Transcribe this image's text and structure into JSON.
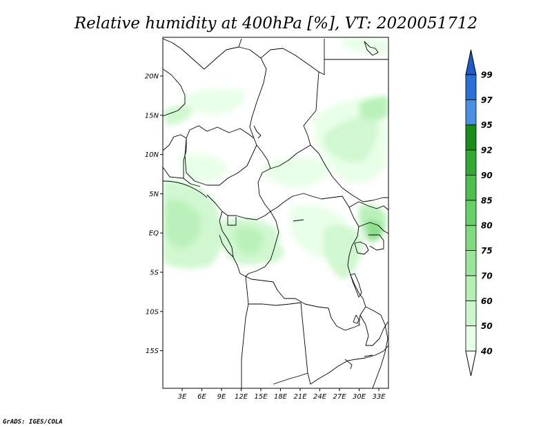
{
  "title": "Relative humidity at 400hPa [%], VT: 2020051712",
  "credit": "GrADS: IGES/COLA",
  "map": {
    "lat_labels": [
      "20N",
      "15N",
      "10N",
      "5N",
      "EQ",
      "5S",
      "10S",
      "15S"
    ],
    "lon_labels": [
      "3E",
      "6E",
      "9E",
      "12E",
      "15E",
      "18E",
      "21E",
      "24E",
      "27E",
      "30E",
      "33E"
    ]
  },
  "colorbar": {
    "labels": [
      "40",
      "50",
      "60",
      "70",
      "75",
      "80",
      "85",
      "90",
      "92",
      "95",
      "97",
      "99"
    ],
    "colors": [
      "#ffffff",
      "#e6ffe6",
      "#ccf7cc",
      "#b3f0b3",
      "#99e699",
      "#80db80",
      "#66d166",
      "#4dbf4d",
      "#33a833",
      "#1a8c1a",
      "#4a90e2",
      "#2a6fd6",
      "#1f5bc8"
    ]
  }
}
